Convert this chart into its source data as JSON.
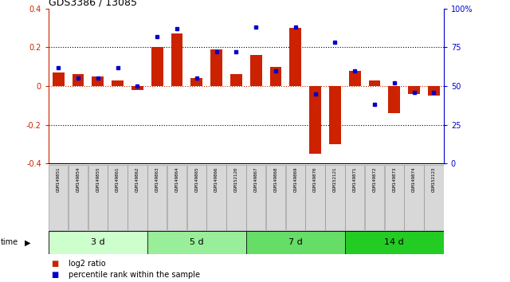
{
  "title": "GDS3386 / 13085",
  "samples": [
    "GSM149851",
    "GSM149854",
    "GSM149855",
    "GSM149861",
    "GSM149862",
    "GSM149863",
    "GSM149864",
    "GSM149865",
    "GSM149866",
    "GSM152120",
    "GSM149867",
    "GSM149868",
    "GSM149869",
    "GSM149870",
    "GSM152121",
    "GSM149871",
    "GSM149872",
    "GSM149873",
    "GSM149874",
    "GSM152123"
  ],
  "log2_ratio": [
    0.07,
    0.06,
    0.05,
    0.03,
    -0.02,
    0.2,
    0.27,
    0.04,
    0.19,
    0.06,
    0.16,
    0.1,
    0.3,
    -0.35,
    -0.3,
    0.08,
    0.03,
    -0.14,
    -0.04,
    -0.05
  ],
  "percentile": [
    62,
    55,
    55,
    62,
    50,
    82,
    87,
    55,
    72,
    72,
    88,
    60,
    88,
    45,
    78,
    60,
    38,
    52,
    46,
    46
  ],
  "groups": [
    {
      "label": "3 d",
      "start": 0,
      "end": 5,
      "color": "#ccffcc"
    },
    {
      "label": "5 d",
      "start": 5,
      "end": 10,
      "color": "#99ee99"
    },
    {
      "label": "7 d",
      "start": 10,
      "end": 15,
      "color": "#66dd66"
    },
    {
      "label": "14 d",
      "start": 15,
      "end": 20,
      "color": "#22cc22"
    }
  ],
  "bar_color": "#cc2200",
  "dot_color": "#0000cc",
  "ylim_left": [
    -0.4,
    0.4
  ],
  "ylim_right": [
    0,
    100
  ],
  "yticks_left": [
    -0.4,
    -0.2,
    0.0,
    0.2,
    0.4
  ],
  "ytick_labels_left": [
    "-0.4",
    "-0.2",
    "0",
    "0.2",
    "0.4"
  ],
  "yticks_right": [
    0,
    25,
    50,
    75,
    100
  ],
  "ytick_labels_right": [
    "0",
    "25",
    "50",
    "75",
    "100%"
  ],
  "background_color": "#ffffff",
  "label_bg": "#d8d8d8"
}
